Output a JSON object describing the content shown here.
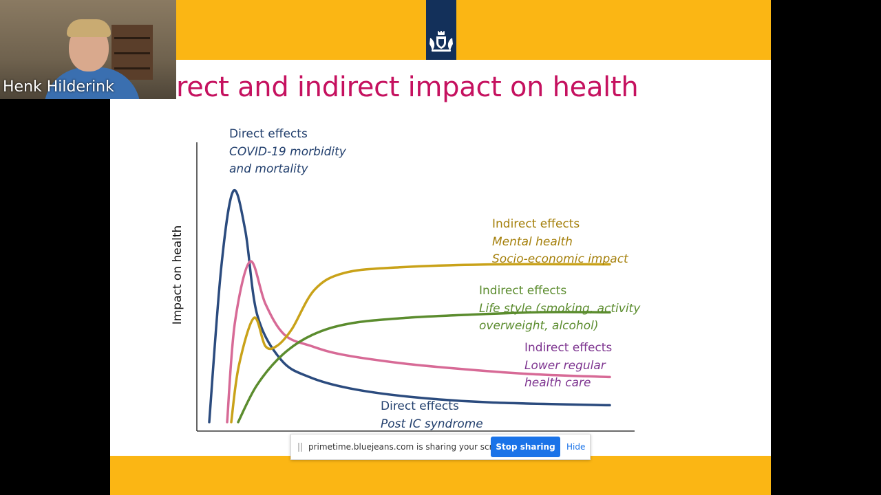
{
  "slide": {
    "title": "rect and indirect impact on health",
    "y_axis_label": "Impact on health",
    "labels": {
      "direct_covid": [
        "Direct effects",
        "COVID-19 morbidity",
        "and mortality"
      ],
      "indirect_mental": [
        "Indirect effects",
        "Mental health",
        "Socio-economic impact"
      ],
      "indirect_lifestyle": [
        "Indirect effects",
        "Life style (smoking, activity",
        "overweight, alcohol)"
      ],
      "indirect_care": [
        "Indirect effects",
        "Lower regular",
        "health care"
      ],
      "direct_post_ic": [
        "Direct effects",
        "Post IC syndrome"
      ]
    },
    "colors": {
      "title": "#c5115f",
      "band": "#fbb614",
      "emblem_tab": "#13305a",
      "direct": "#2b4b7e",
      "care": "#d76a96",
      "mental": "#c9a219",
      "lifestyle": "#5b8c2e"
    },
    "emblem_icon": "dutch-government-coat-of-arms-icon"
  },
  "chart_data": {
    "type": "line",
    "ylabel": "Impact on health",
    "xlabel": "",
    "curves": [
      {
        "key": "direct",
        "x": [
          0,
          3,
          6,
          9,
          12,
          18,
          25,
          35,
          50,
          70,
          100
        ],
        "y": [
          0,
          55,
          82,
          68,
          38,
          22,
          16,
          12,
          9,
          7,
          6
        ]
      },
      {
        "key": "care",
        "x": [
          0,
          2,
          6,
          10,
          15,
          22,
          30,
          45,
          60,
          80,
          100
        ],
        "y": [
          0,
          35,
          57,
          42,
          31,
          27,
          24,
          21,
          19,
          17,
          16
        ]
      },
      {
        "key": "mental",
        "x": [
          0,
          2,
          6,
          9,
          12,
          16,
          22,
          30,
          45,
          70,
          100
        ],
        "y": [
          0,
          20,
          37,
          27,
          27,
          33,
          47,
          53,
          55,
          56,
          56
        ]
      },
      {
        "key": "lifestyle",
        "x": [
          0,
          5,
          12,
          20,
          30,
          45,
          60,
          80,
          100
        ],
        "y": [
          0,
          13,
          24,
          31,
          35,
          37,
          38,
          39,
          39
        ]
      }
    ]
  },
  "webcam": {
    "participant_name": "Henk Hilderink"
  },
  "share_bar": {
    "message": "primetime.bluejeans.com is sharing your screen.",
    "stop_label": "Stop sharing",
    "hide_label": "Hide"
  }
}
